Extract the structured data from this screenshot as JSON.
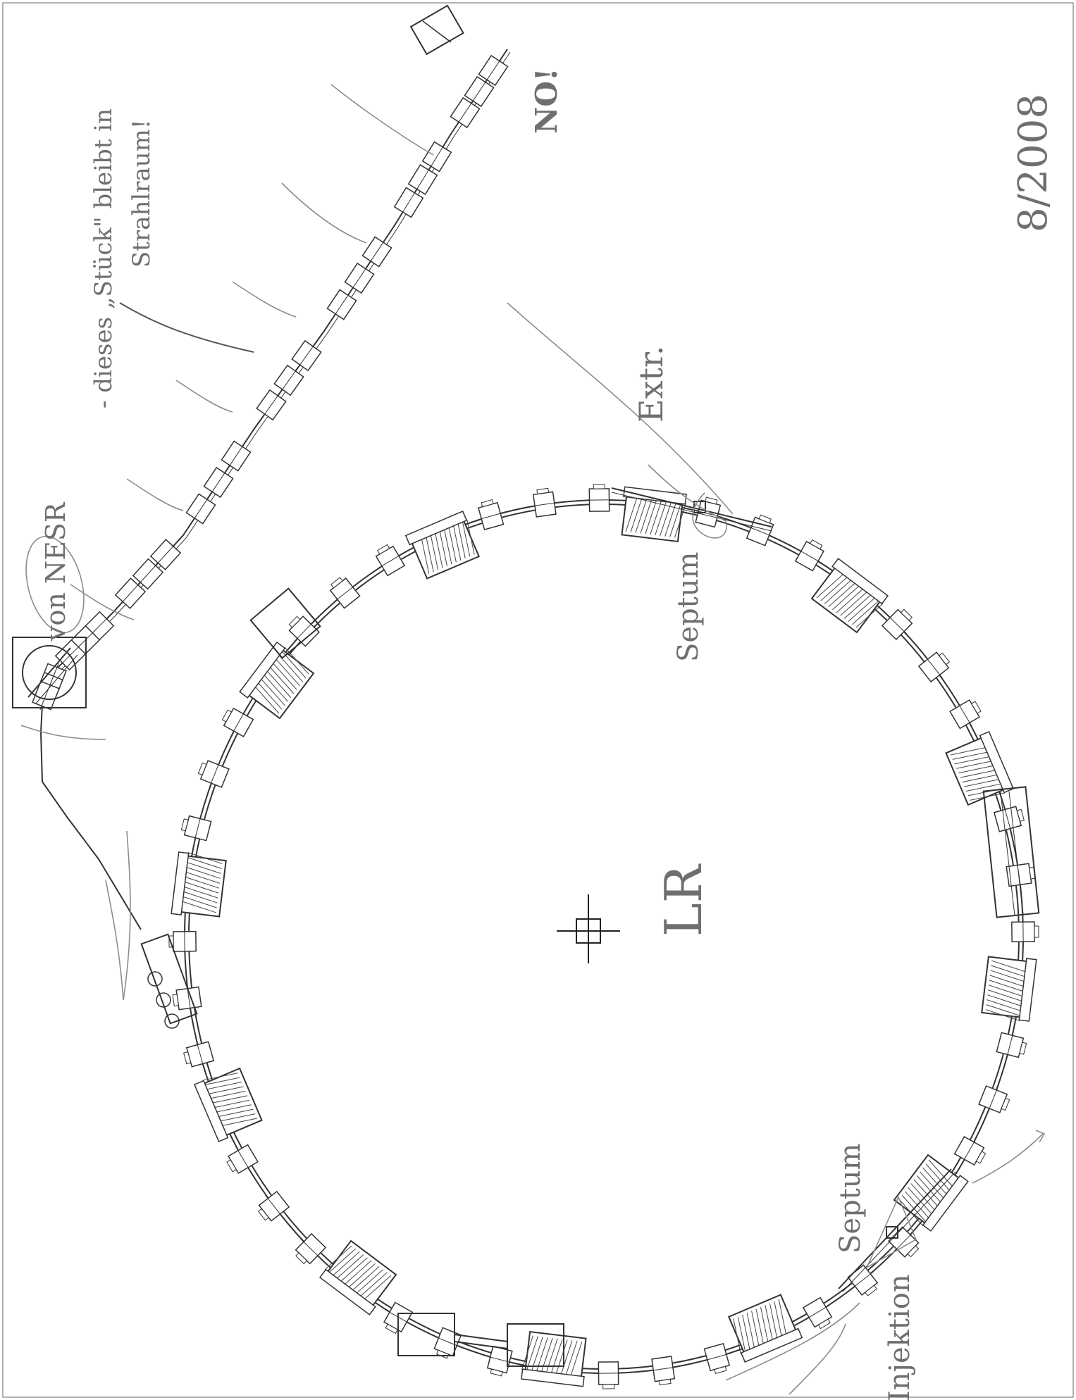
{
  "annotations": {
    "center_label": "LR",
    "date": "8/2008",
    "extraction": "Extr.",
    "septum_extraction": "Septum",
    "septum_injection": "Septum",
    "injection": "Injektion",
    "no": "NO!",
    "note_line1": "- dieses „Stück\" bleibt in",
    "note_line2": "Strahlraum!",
    "from_label": "von NESR"
  },
  "components": {
    "ring_dipoles": 12,
    "beamline_dipoles": 2
  },
  "colors": {
    "ink": "#333333",
    "pencil": "#8c8c8c",
    "paper": "#ffffff"
  }
}
